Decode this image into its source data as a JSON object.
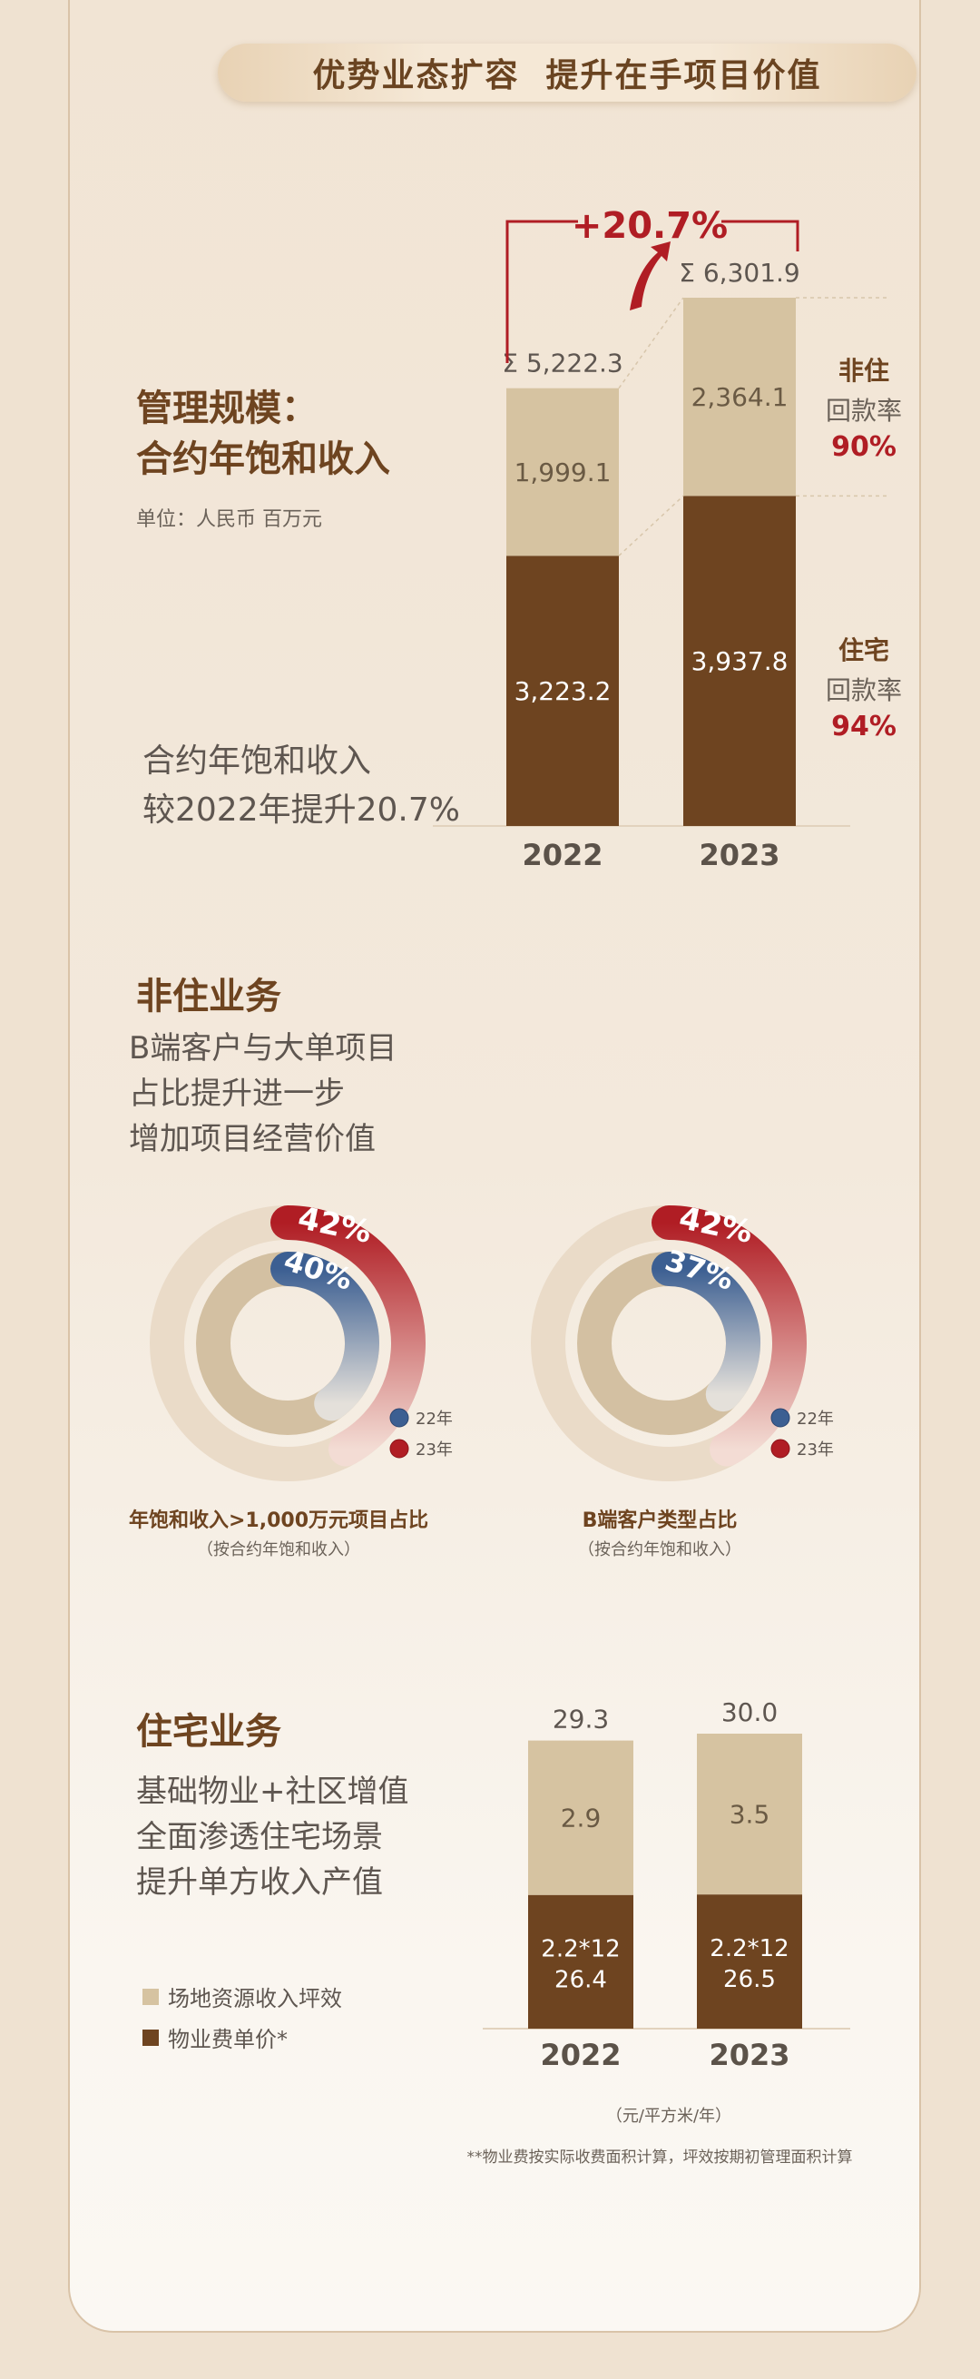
{
  "header": {
    "title": "优势业态扩容  提升在手项目价值"
  },
  "section1": {
    "title_line1": "管理规模：",
    "title_line2": "合约年饱和收入",
    "unit": "单位：人民币 百万元",
    "note_line1": "合约年饱和收入",
    "note_line2": "较2022年提升20.7%",
    "growth_label": "+20.7%",
    "nonres_label": "非住",
    "nonres_rate_label": "回款率",
    "nonres_rate": "90%",
    "res_label": "住宅",
    "res_rate_label": "回款率",
    "res_rate": "94%"
  },
  "section2": {
    "title": "非住业务",
    "line1": "B端客户与大单项目",
    "line2": "占比提升进一步",
    "line3": "增加项目经营价值",
    "donut1_label": "年饱和收入>1,000万元项目占比",
    "donut1_sub": "（按合约年饱和收入）",
    "donut2_label": "B端客户类型占比",
    "donut2_sub": "（按合约年饱和收入）",
    "legend_22": "22年",
    "legend_23": "23年"
  },
  "section3": {
    "title": "住宅业务",
    "line1": "基础物业+社区增值",
    "line2": "全面渗透住宅场景",
    "line3": "提升单方收入产值",
    "legend_site": "场地资源收入坪效",
    "legend_fee": "物业费单价*",
    "unit": "（元/平方米/年）",
    "footnote": "**物业费按实际收费面积计算，坪效按期初管理面积计算"
  },
  "colors": {
    "dark_brown": "#6e4420",
    "light_tan": "#d6c3a1",
    "red": "#b01d24",
    "blue": "#3c5f92"
  },
  "chart_data": [
    {
      "type": "bar",
      "stacked": true,
      "categories": [
        "2022",
        "2023"
      ],
      "series": [
        {
          "name": "住宅",
          "values": [
            3223.2,
            3937.8
          ],
          "labels": [
            "3,223.2",
            "3,937.8"
          ]
        },
        {
          "name": "非住",
          "values": [
            1999.1,
            2364.1
          ],
          "labels": [
            "1,999.1",
            "2,364.1"
          ]
        }
      ],
      "totals": [
        "Σ 5,222.3",
        "Σ 6,301.9"
      ],
      "ylim": [
        0,
        6301.9
      ]
    },
    {
      "type": "pie",
      "subtype": "donut",
      "series": [
        {
          "name": "22年",
          "value": 40,
          "label": "40%"
        },
        {
          "name": "23年",
          "value": 42,
          "label": "42%"
        }
      ]
    },
    {
      "type": "pie",
      "subtype": "donut",
      "series": [
        {
          "name": "22年",
          "value": 37,
          "label": "37%"
        },
        {
          "name": "23年",
          "value": 42,
          "label": "42%"
        }
      ]
    },
    {
      "type": "bar",
      "stacked": true,
      "categories": [
        "2022",
        "2023"
      ],
      "series": [
        {
          "name": "物业费单价*",
          "values": [
            26.4,
            26.5
          ],
          "labels": [
            "2.2*12\n26.4",
            "2.2*12\n26.5"
          ]
        },
        {
          "name": "场地资源收入坪效",
          "values": [
            2.9,
            3.5
          ],
          "labels": [
            "2.9",
            "3.5"
          ]
        }
      ],
      "totals": [
        "29.3",
        "30.0"
      ],
      "ylim": [
        0,
        30.0
      ]
    }
  ]
}
